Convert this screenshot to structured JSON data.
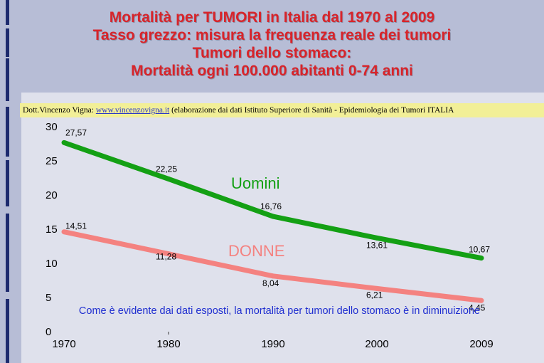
{
  "title": {
    "line1": "Mortalità per TUMORI in Italia dal 1970 al 2009",
    "line2": "Tasso grezzo: misura la frequenza reale dei tumori",
    "line3": "Tumori dello stomaco:",
    "line4": "Mortalità ogni 100.000 abitanti 0-74 anni"
  },
  "credit": {
    "author": "Dott.Vincenzo Vigna:",
    "link": "www.vincenzovigna.it",
    "source": "(elaborazione dai dati Istituto Superiore di Sanità - Epidemiologia dei Tumori ITALIA"
  },
  "note": "Come è evidente dai dati esposti, la mortalità per tumori dello stomaco è in diminuizione",
  "colors": {
    "men": "#14a014",
    "women": "#f48280",
    "title": "#d8242a",
    "note": "#1f2ed0"
  },
  "chart_data": {
    "type": "line",
    "x": [
      1970,
      1980,
      1990,
      2000,
      2009
    ],
    "x_ticks": [
      "1970",
      "1980",
      "1990",
      "2000",
      "2009"
    ],
    "y_ticks": [
      "0",
      "5",
      "10",
      "15",
      "20",
      "25",
      "30"
    ],
    "ylim": [
      0,
      30
    ],
    "grid": false,
    "series": [
      {
        "name": "Uomini",
        "values": [
          27.57,
          22.25,
          16.76,
          13.61,
          10.67
        ],
        "labels": [
          "27,57",
          "22,25",
          "16,76",
          "13,61",
          "10,67"
        ]
      },
      {
        "name": "DONNE",
        "values": [
          14.51,
          11.28,
          8.04,
          6.21,
          4.45
        ],
        "labels": [
          "14,51",
          "11,28",
          "8,04",
          "6,21",
          "4,45"
        ]
      }
    ]
  }
}
